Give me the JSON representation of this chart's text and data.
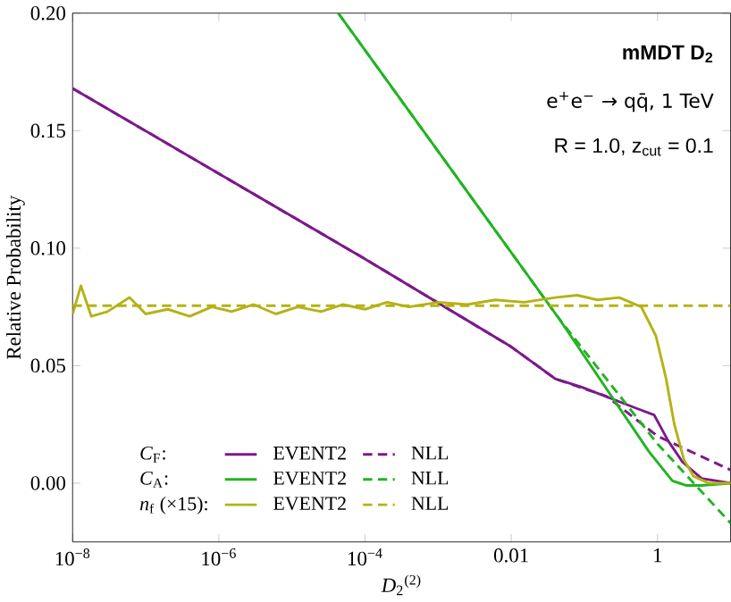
{
  "chart_data": {
    "type": "line",
    "title": "mMDT D$_{2}$",
    "subtitle": "e$^{+}$e$^{−}$ → qq̄, 1 TeV",
    "annotations": [
      "R = 1.0, z$_{cut}$ = 0.1",
      "*C*$_{F}$:",
      "*C*$_{A}$:",
      "*n*$_{f}$ (×15):"
    ],
    "xlabel": "*D*$_{2}$$^{(2)}$",
    "ylabel": "Relative Probability",
    "log": "x",
    "xlim": [
      1e-08,
      10
    ],
    "ylim": [
      -0.025,
      0.2
    ],
    "xticks": [
      {
        "value": 1e-08,
        "label": "10$^{−8}$"
      },
      {
        "value": 1e-06,
        "label": "10$^{−6}$"
      },
      {
        "value": 0.0001,
        "label": "10$^{−4}$"
      },
      0.01,
      1
    ],
    "yticks": [
      {
        "value": 0,
        "label": "0.00"
      },
      {
        "value": 0.05,
        "label": "0.05"
      },
      {
        "value": 0.1,
        "label": "0.10"
      },
      {
        "value": 0.15,
        "label": "0.15"
      },
      {
        "value": 0.2,
        "label": "0.20"
      }
    ],
    "grid": false,
    "legend": "bottom left",
    "marker": "none",
    "series": [
      {
        "name": "EVENT2",
        "color": "#7b1a8a",
        "line_style": "solid",
        "x": [
          1e-08,
          0.0001,
          0.01,
          0.04,
          0.09,
          0.5,
          0.9,
          1.4,
          2.2,
          4,
          10
        ],
        "values": [
          0.168,
          0.0954,
          0.058,
          0.0444,
          0.041,
          0.032,
          0.029,
          0.018,
          0.009,
          0.002,
          0.0
        ]
      },
      {
        "name": "NLL",
        "color": "#7b1a8a",
        "line_style": "dashed",
        "x": [
          1e-08,
          0.0001,
          0.01,
          0.04,
          0.2,
          1,
          10
        ],
        "values": [
          0.168,
          0.0954,
          0.058,
          0.0444,
          0.037,
          0.02,
          0.0056
        ]
      },
      {
        "name": "EVENT2",
        "color": "#22b422",
        "line_style": "solid",
        "x": [
          4.3e-05,
          0.045,
          0.76,
          1.6,
          2.5,
          4,
          10
        ],
        "values": [
          0.2,
          0.07,
          0.0135,
          0.001,
          -0.001,
          -0.001,
          0.0
        ]
      },
      {
        "name": "NLL",
        "color": "#22b422",
        "line_style": "dashed",
        "x": [
          4.3e-05,
          0.045,
          1,
          10
        ],
        "values": [
          0.2,
          0.07,
          0.0167,
          -0.017
        ]
      },
      {
        "name": "EVENT2",
        "color": "#b5b214",
        "line_style": "solid",
        "x": [
          1e-08,
          1.3e-08,
          1.8e-08,
          3e-08,
          6e-08,
          1e-07,
          2e-07,
          4e-07,
          8e-07,
          1.5e-06,
          3e-06,
          6e-06,
          1.2e-05,
          2.5e-05,
          5e-05,
          0.0001,
          0.0002,
          0.0004,
          0.001,
          0.0025,
          0.006,
          0.015,
          0.04,
          0.08,
          0.15,
          0.3,
          0.6,
          0.95,
          1.3,
          1.7,
          2.3,
          3.1,
          5,
          10
        ],
        "values": [
          0.072,
          0.084,
          0.071,
          0.073,
          0.079,
          0.072,
          0.074,
          0.071,
          0.075,
          0.073,
          0.076,
          0.072,
          0.075,
          0.073,
          0.076,
          0.074,
          0.077,
          0.075,
          0.077,
          0.076,
          0.078,
          0.077,
          0.079,
          0.08,
          0.078,
          0.079,
          0.075,
          0.0627,
          0.045,
          0.025,
          0.01,
          0.003,
          0.0,
          0.0
        ]
      },
      {
        "name": "NLL",
        "color": "#b5b214",
        "line_style": "dashed",
        "x": [
          1e-08,
          10
        ],
        "values": [
          0.0755,
          0.0755
        ]
      }
    ]
  }
}
